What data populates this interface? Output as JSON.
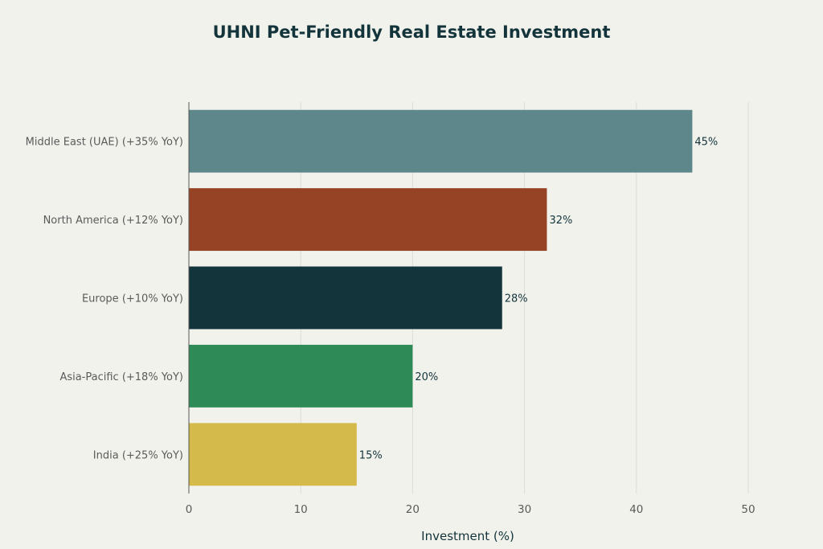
{
  "chart_data": {
    "type": "bar",
    "orientation": "horizontal",
    "title": "UHNI Pet-Friendly Real Estate Investment",
    "xlabel": "Investment (%)",
    "ylabel": "",
    "xlim": [
      0,
      50
    ],
    "xticks": [
      0,
      10,
      20,
      30,
      40,
      50
    ],
    "grid": true,
    "categories": [
      "Middle East (UAE) (+35% YoY)",
      "North America (+12% YoY)",
      "Europe (+10% YoY)",
      "Asia-Pacific (+18% YoY)",
      "India (+25% YoY)"
    ],
    "values": [
      45,
      32,
      28,
      20,
      15
    ],
    "value_labels": [
      "45%",
      "32%",
      "28%",
      "20%",
      "15%"
    ],
    "colors": [
      "#5e878c",
      "#964325",
      "#13343b",
      "#2e8b57",
      "#d4b94b"
    ]
  }
}
